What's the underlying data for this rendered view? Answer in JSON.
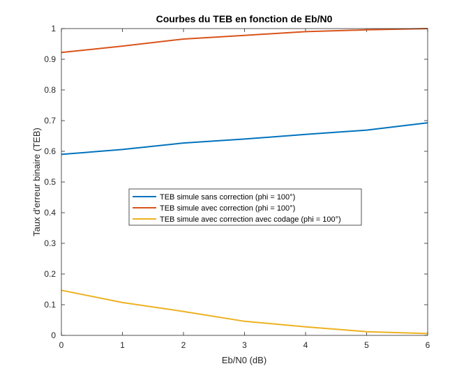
{
  "chart_data": {
    "type": "line",
    "title": "Courbes du TEB en fonction de Eb/N0",
    "xlabel": "Eb/N0 (dB)",
    "ylabel": "Taux d'erreur binaire (TEB)",
    "xlim": [
      0,
      6
    ],
    "ylim": [
      0,
      1
    ],
    "xticks": [
      0,
      1,
      2,
      3,
      4,
      5,
      6
    ],
    "yticks": [
      0,
      0.1,
      0.2,
      0.3,
      0.4,
      0.5,
      0.6,
      0.7,
      0.8,
      0.9,
      1
    ],
    "grid": false,
    "legend_position": "center",
    "x": [
      0,
      1,
      2,
      3,
      4,
      5,
      6
    ],
    "series": [
      {
        "name": "TEB simule sans correction (phi = 100°)",
        "color": "#0072BD",
        "values": [
          0.59,
          0.606,
          0.627,
          0.64,
          0.655,
          0.669,
          0.693
        ]
      },
      {
        "name": "TEB simule avec correction (phi = 100°)",
        "color": "#D95319",
        "values": [
          0.922,
          0.943,
          0.966,
          0.978,
          0.99,
          0.996,
          1.0
        ]
      },
      {
        "name": "TEB simule avec correction avec codage (phi = 100°)",
        "color": "#EDB120",
        "values": [
          0.147,
          0.107,
          0.078,
          0.046,
          0.028,
          0.012,
          0.006
        ]
      }
    ]
  }
}
